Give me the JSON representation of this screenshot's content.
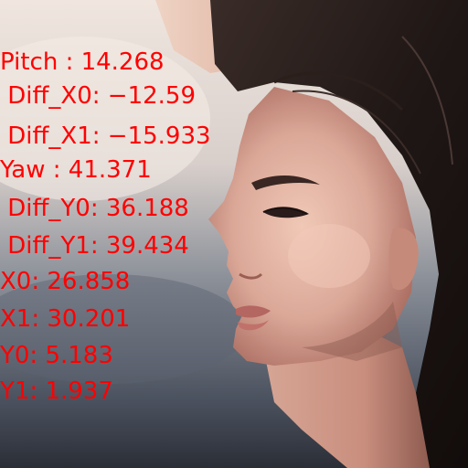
{
  "overlay": {
    "color": "#ff0000",
    "lines": [
      "Pitch : 14.268",
      " Diff_X0: −12.59",
      " Diff_X1: −15.933",
      "Yaw : 41.371",
      " Diff_Y0: 36.188",
      " Diff_Y1: 39.434",
      "X0: 26.858",
      "X1: 30.201",
      "Y0: 5.183",
      "Y1: 1.937"
    ]
  },
  "photo": {
    "subject": "woman-face-profile",
    "background_colors": [
      "#e8d9cf",
      "#6f7782",
      "#2d2d32"
    ],
    "skin_colors": [
      "#e3b5a2",
      "#b8776a"
    ],
    "hair_color": "#1e1614"
  }
}
